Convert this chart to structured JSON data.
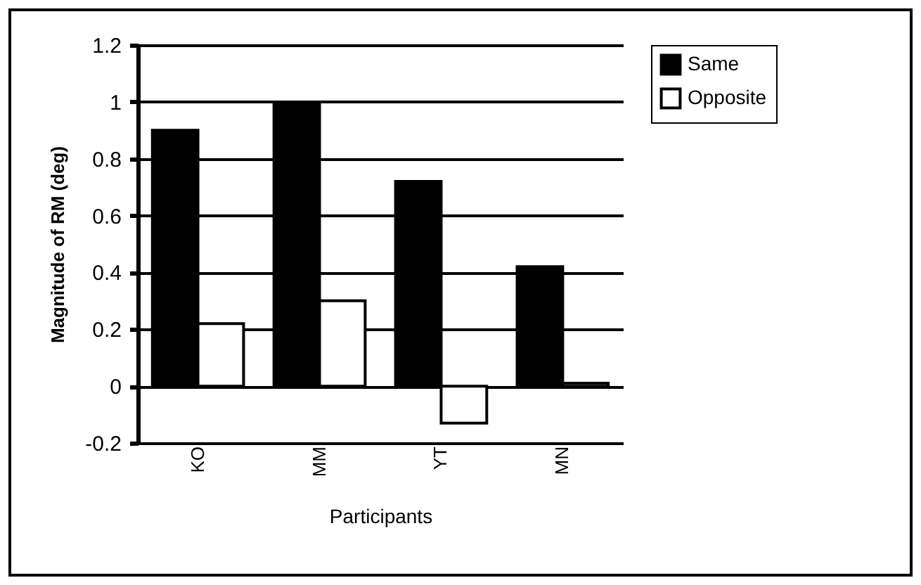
{
  "chart_data": {
    "type": "bar",
    "xlabel": "Participants",
    "ylabel": "Magnitude of RM (deg)",
    "categories": [
      "KO",
      "MM",
      "YT",
      "MN"
    ],
    "series": [
      {
        "name": "Same",
        "color": "#000000",
        "values": [
          0.9,
          0.99,
          0.72,
          0.42
        ]
      },
      {
        "name": "Opposite",
        "color": "#ffffff",
        "values": [
          0.22,
          0.3,
          -0.13,
          0.01
        ]
      }
    ],
    "ylim": [
      -0.2,
      1.2
    ],
    "yticks": [
      -0.2,
      0,
      0.2,
      0.4,
      0.6,
      0.8,
      1,
      1.2
    ],
    "grid": "y",
    "legend": "right"
  }
}
